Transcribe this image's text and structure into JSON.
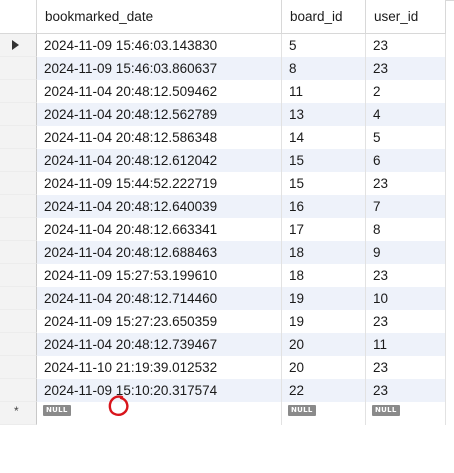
{
  "columns": [
    "bookmarked_date",
    "board_id",
    "user_id"
  ],
  "rows": [
    [
      "2024-11-09 15:46:03.143830",
      "5",
      "23"
    ],
    [
      "2024-11-09 15:46:03.860637",
      "8",
      "23"
    ],
    [
      "2024-11-04 20:48:12.509462",
      "11",
      "2"
    ],
    [
      "2024-11-04 20:48:12.562789",
      "13",
      "4"
    ],
    [
      "2024-11-04 20:48:12.586348",
      "14",
      "5"
    ],
    [
      "2024-11-04 20:48:12.612042",
      "15",
      "6"
    ],
    [
      "2024-11-09 15:44:52.222719",
      "15",
      "23"
    ],
    [
      "2024-11-04 20:48:12.640039",
      "16",
      "7"
    ],
    [
      "2024-11-04 20:48:12.663341",
      "17",
      "8"
    ],
    [
      "2024-11-04 20:48:12.688463",
      "18",
      "9"
    ],
    [
      "2024-11-09 15:27:53.199610",
      "18",
      "23"
    ],
    [
      "2024-11-04 20:48:12.714460",
      "19",
      "10"
    ],
    [
      "2024-11-09 15:27:23.650359",
      "19",
      "23"
    ],
    [
      "2024-11-04 20:48:12.739467",
      "20",
      "11"
    ],
    [
      "2024-11-10 21:19:39.012532",
      "20",
      "23"
    ],
    [
      "2024-11-09 15:10:20.317574",
      "22",
      "23"
    ]
  ],
  "new_row": [
    "NULL",
    "NULL",
    "NULL"
  ],
  "current_row_indicator": "arrow",
  "new_row_indicator": "*",
  "colors": {
    "alt_row": "#eef2fa",
    "annotation": "#d8141b",
    "null_badge": "#8a8a8a"
  }
}
